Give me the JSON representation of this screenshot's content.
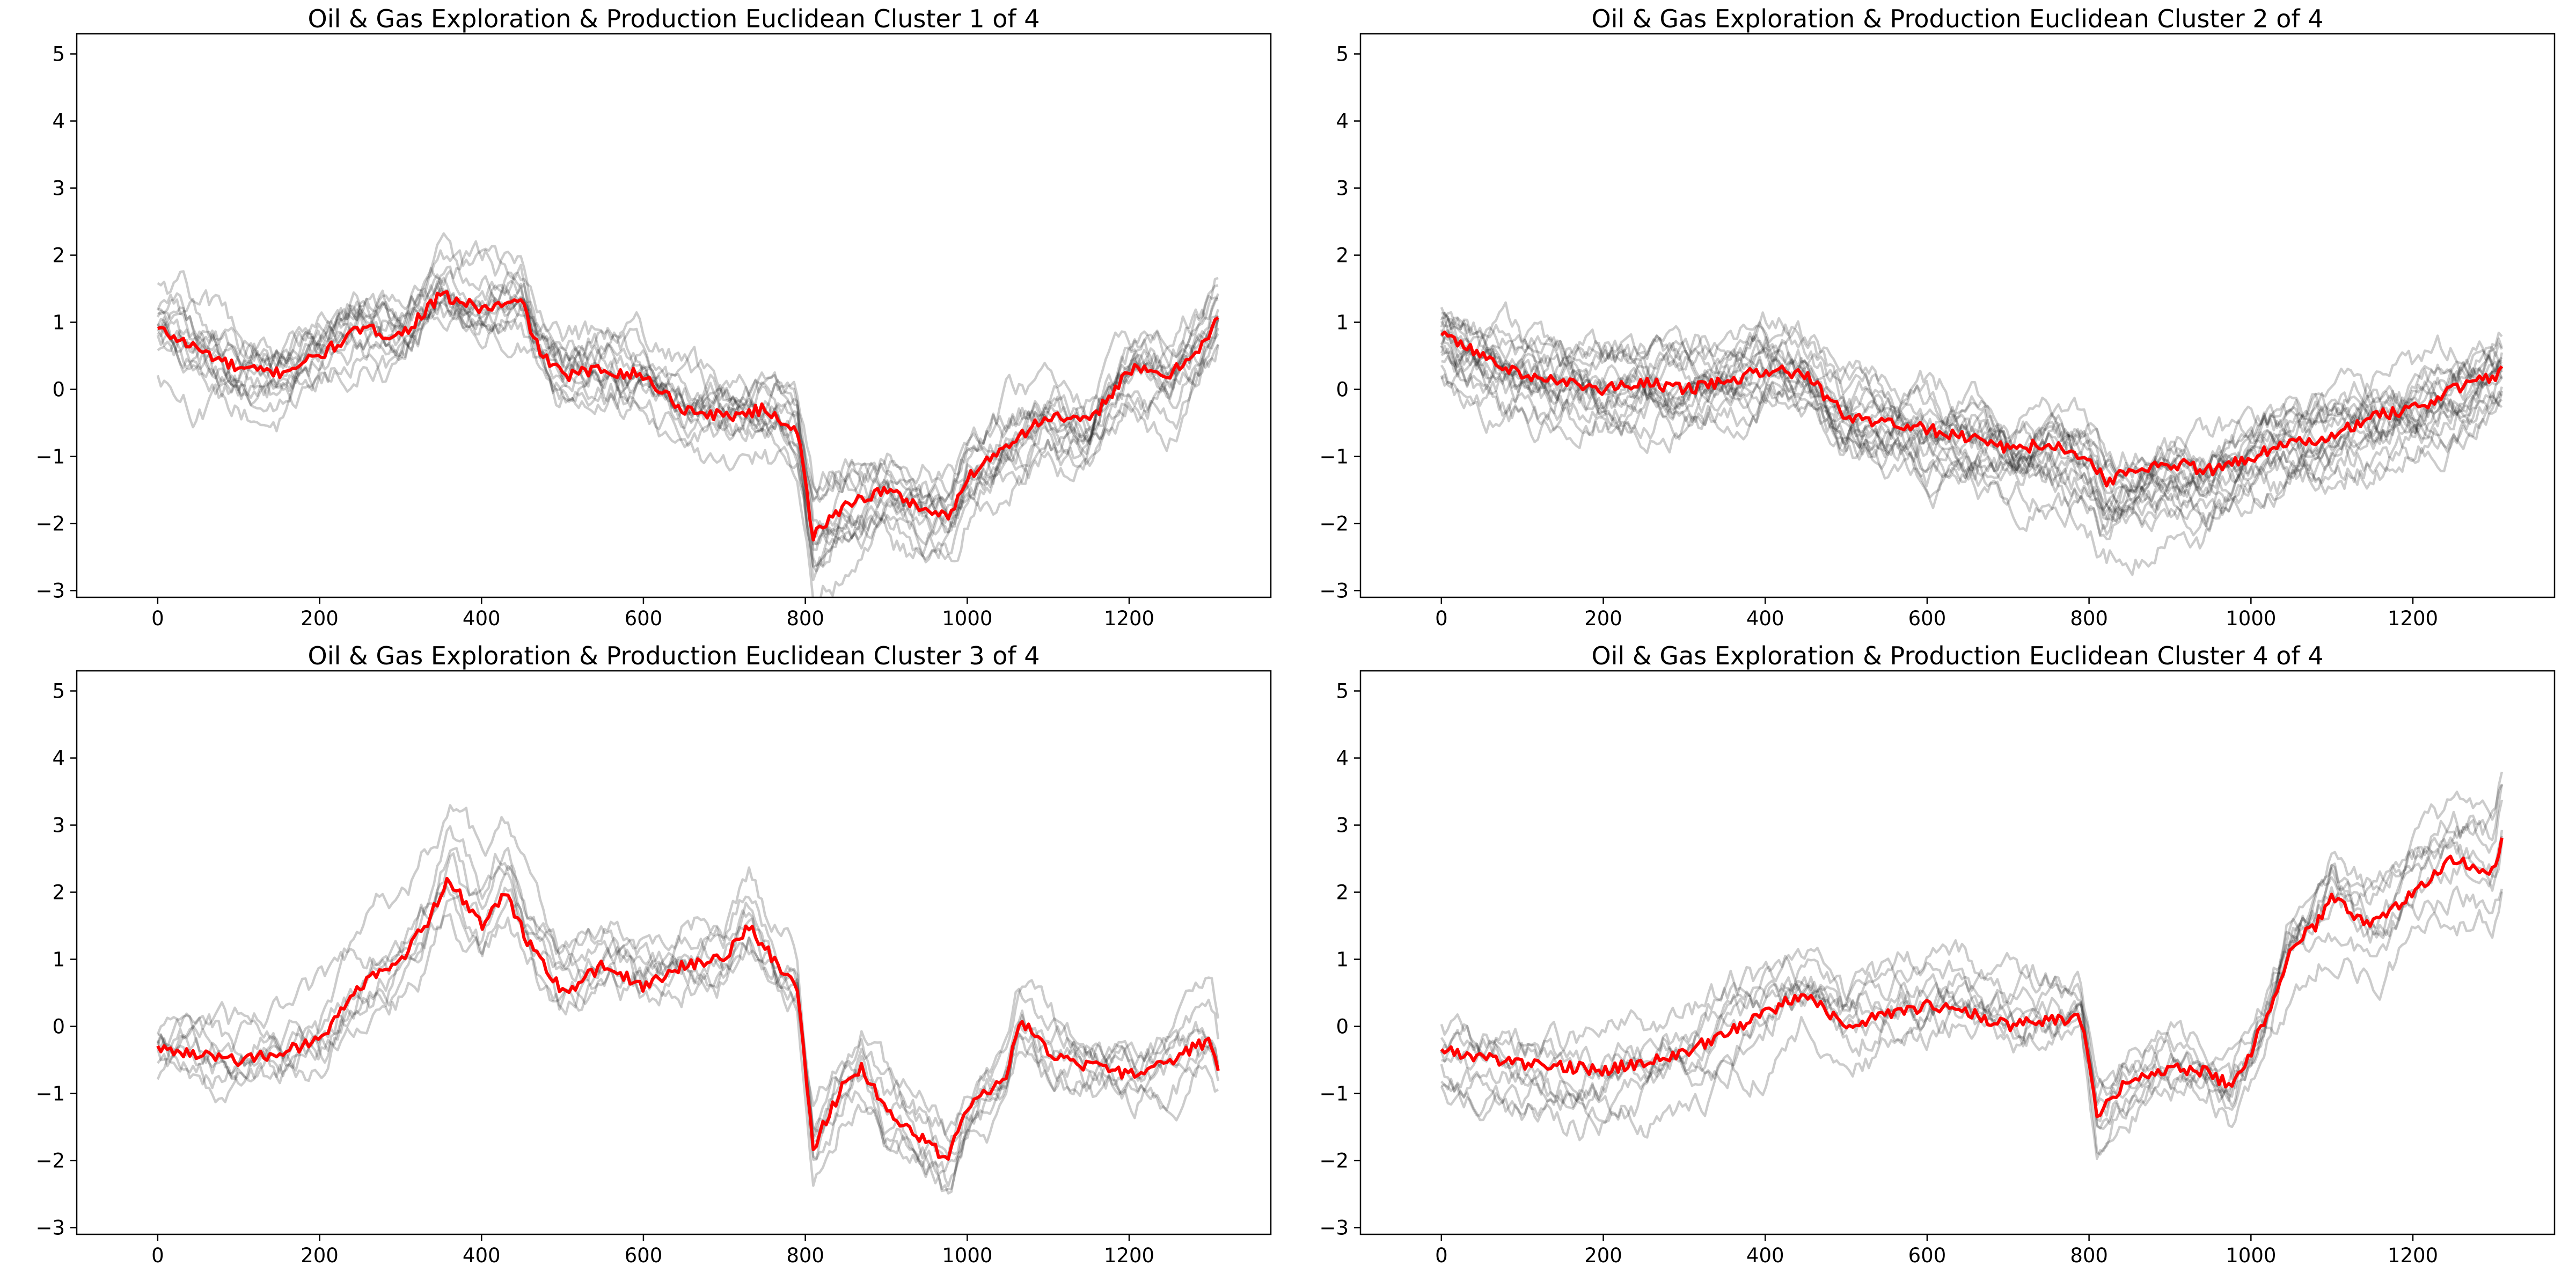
{
  "chart_data": [
    {
      "type": "line",
      "title": "Oil & Gas Exploration & Production Euclidean Cluster 1 of 4",
      "xlim": [
        -100,
        1375
      ],
      "ylim": [
        -3.1,
        5.3
      ],
      "x_ticks": [
        "0",
        "200",
        "400",
        "600",
        "800",
        "1000",
        "1200"
      ],
      "y_ticks": [
        "−3",
        "−2",
        "−1",
        "0",
        "1",
        "2",
        "3",
        "4",
        "5"
      ],
      "grid": false,
      "n_background_series": 14,
      "background_color": "#000000",
      "background_opacity": 0.2,
      "centroid_color": "#ff0000",
      "centroid": {
        "x": [
          0,
          50,
          100,
          150,
          200,
          250,
          300,
          350,
          400,
          450,
          470,
          500,
          550,
          600,
          650,
          700,
          750,
          790,
          810,
          850,
          900,
          950,
          980,
          1000,
          1050,
          1100,
          1150,
          1200,
          1250,
          1300,
          1310
        ],
        "y": [
          0.9,
          0.6,
          0.3,
          0.25,
          0.5,
          0.9,
          0.8,
          1.4,
          1.2,
          1.3,
          0.6,
          0.2,
          0.3,
          0.2,
          -0.3,
          -0.4,
          -0.3,
          -0.6,
          -2.2,
          -1.7,
          -1.5,
          -1.8,
          -1.9,
          -1.3,
          -0.8,
          -0.4,
          -0.5,
          0.3,
          0.2,
          0.8,
          1.1
        ]
      }
    },
    {
      "type": "line",
      "title": "Oil & Gas Exploration & Production Euclidean Cluster 2 of 4",
      "xlim": [
        -100,
        1375
      ],
      "ylim": [
        -3.1,
        5.3
      ],
      "x_ticks": [
        "0",
        "200",
        "400",
        "600",
        "800",
        "1000",
        "1200"
      ],
      "y_ticks": [
        "−3",
        "−2",
        "−1",
        "0",
        "1",
        "2",
        "3",
        "4",
        "5"
      ],
      "grid": false,
      "n_background_series": 18,
      "background_color": "#000000",
      "background_opacity": 0.2,
      "centroid_color": "#ff0000",
      "centroid": {
        "x": [
          0,
          50,
          100,
          150,
          200,
          250,
          300,
          350,
          400,
          450,
          500,
          550,
          600,
          650,
          700,
          750,
          800,
          820,
          850,
          900,
          950,
          1000,
          1050,
          1100,
          1150,
          1200,
          1250,
          1300,
          1310
        ],
        "y": [
          0.8,
          0.5,
          0.2,
          0.1,
          0.0,
          0.1,
          0.0,
          0.1,
          0.3,
          0.2,
          -0.4,
          -0.5,
          -0.6,
          -0.7,
          -0.9,
          -0.8,
          -1.0,
          -1.4,
          -1.2,
          -1.1,
          -1.2,
          -1.0,
          -0.8,
          -0.7,
          -0.4,
          -0.3,
          0.0,
          0.2,
          0.3
        ]
      }
    },
    {
      "type": "line",
      "title": "Oil & Gas Exploration & Production Euclidean Cluster 3 of 4",
      "xlim": [
        -100,
        1375
      ],
      "ylim": [
        -3.1,
        5.3
      ],
      "x_ticks": [
        "0",
        "200",
        "400",
        "600",
        "800",
        "1000",
        "1200"
      ],
      "y_ticks": [
        "−3",
        "−2",
        "−1",
        "0",
        "1",
        "2",
        "3",
        "4",
        "5"
      ],
      "grid": false,
      "n_background_series": 8,
      "background_color": "#000000",
      "background_opacity": 0.2,
      "centroid_color": "#ff0000",
      "centroid": {
        "x": [
          0,
          50,
          100,
          150,
          200,
          250,
          300,
          330,
          360,
          400,
          430,
          460,
          500,
          550,
          600,
          650,
          700,
          730,
          760,
          790,
          810,
          850,
          870,
          900,
          950,
          975,
          1000,
          1050,
          1065,
          1100,
          1150,
          1200,
          1250,
          1300,
          1310
        ],
        "y": [
          -0.3,
          -0.4,
          -0.5,
          -0.4,
          -0.2,
          0.6,
          1.0,
          1.5,
          2.2,
          1.5,
          2.0,
          1.2,
          0.5,
          0.9,
          0.6,
          0.9,
          1.0,
          1.5,
          1.0,
          0.6,
          -1.8,
          -0.8,
          -0.6,
          -1.3,
          -1.7,
          -2.0,
          -1.2,
          -0.7,
          0.1,
          -0.4,
          -0.6,
          -0.7,
          -0.5,
          -0.2,
          -0.6
        ]
      }
    },
    {
      "type": "line",
      "title": "Oil & Gas Exploration & Production Euclidean Cluster 4 of 4",
      "xlim": [
        -100,
        1375
      ],
      "ylim": [
        -3.1,
        5.3
      ],
      "x_ticks": [
        "0",
        "200",
        "400",
        "600",
        "800",
        "1000",
        "1200"
      ],
      "y_ticks": [
        "−3",
        "−2",
        "−1",
        "0",
        "1",
        "2",
        "3",
        "4",
        "5"
      ],
      "grid": false,
      "n_background_series": 9,
      "background_color": "#000000",
      "background_opacity": 0.2,
      "centroid_color": "#ff0000",
      "centroid": {
        "x": [
          0,
          50,
          100,
          150,
          200,
          250,
          300,
          350,
          400,
          450,
          500,
          550,
          600,
          650,
          700,
          750,
          790,
          810,
          850,
          900,
          950,
          975,
          1000,
          1030,
          1050,
          1080,
          1100,
          1150,
          1200,
          1250,
          1300,
          1310
        ],
        "y": [
          -0.35,
          -0.45,
          -0.55,
          -0.6,
          -0.65,
          -0.55,
          -0.4,
          -0.1,
          0.2,
          0.5,
          0.0,
          0.2,
          0.3,
          0.2,
          0.0,
          0.1,
          0.1,
          -1.3,
          -0.8,
          -0.6,
          -0.7,
          -0.9,
          -0.4,
          0.5,
          1.2,
          1.5,
          1.9,
          1.5,
          2.0,
          2.5,
          2.3,
          2.8
        ]
      }
    }
  ]
}
